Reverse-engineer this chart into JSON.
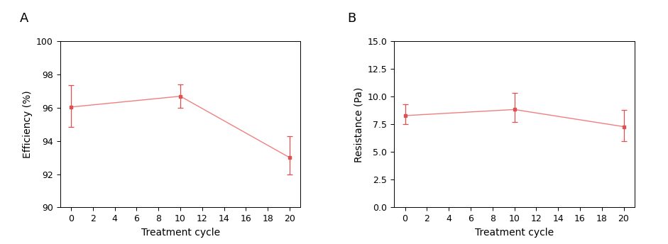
{
  "panel_A": {
    "label": "A",
    "x": [
      0,
      10,
      20
    ],
    "y": [
      96.05,
      96.7,
      93.0
    ],
    "yerr_upper": [
      1.3,
      0.7,
      1.3
    ],
    "yerr_lower": [
      1.2,
      0.7,
      1.0
    ],
    "xlabel": "Treatment cycle",
    "ylabel": "Efficiency (%)",
    "xlim": [
      -1,
      21
    ],
    "ylim": [
      90,
      100
    ],
    "yticks": [
      90,
      92,
      94,
      96,
      98,
      100
    ],
    "xticks": [
      0,
      2,
      4,
      6,
      8,
      10,
      12,
      14,
      16,
      18,
      20
    ]
  },
  "panel_B": {
    "label": "B",
    "x": [
      0,
      10,
      20
    ],
    "y": [
      8.3,
      8.85,
      7.3
    ],
    "yerr_upper": [
      1.0,
      1.5,
      1.5
    ],
    "yerr_lower": [
      0.8,
      1.1,
      1.3
    ],
    "xlabel": "Treatment cycle",
    "ylabel": "Resistance (Pa)",
    "xlim": [
      -1,
      21
    ],
    "ylim": [
      0.0,
      15.0
    ],
    "yticks": [
      0.0,
      2.5,
      5.0,
      7.5,
      10.0,
      12.5,
      15.0
    ],
    "xticks": [
      0,
      2,
      4,
      6,
      8,
      10,
      12,
      14,
      16,
      18,
      20
    ]
  },
  "line_color": "#f08080",
  "marker_color": "#e05050",
  "marker_size": 3.5,
  "line_width": 1.0,
  "cap_size": 3,
  "error_line_width": 0.9,
  "background_color": "#ffffff",
  "axis_label_fontsize": 10,
  "tick_fontsize": 9,
  "panel_label_fontsize": 13
}
